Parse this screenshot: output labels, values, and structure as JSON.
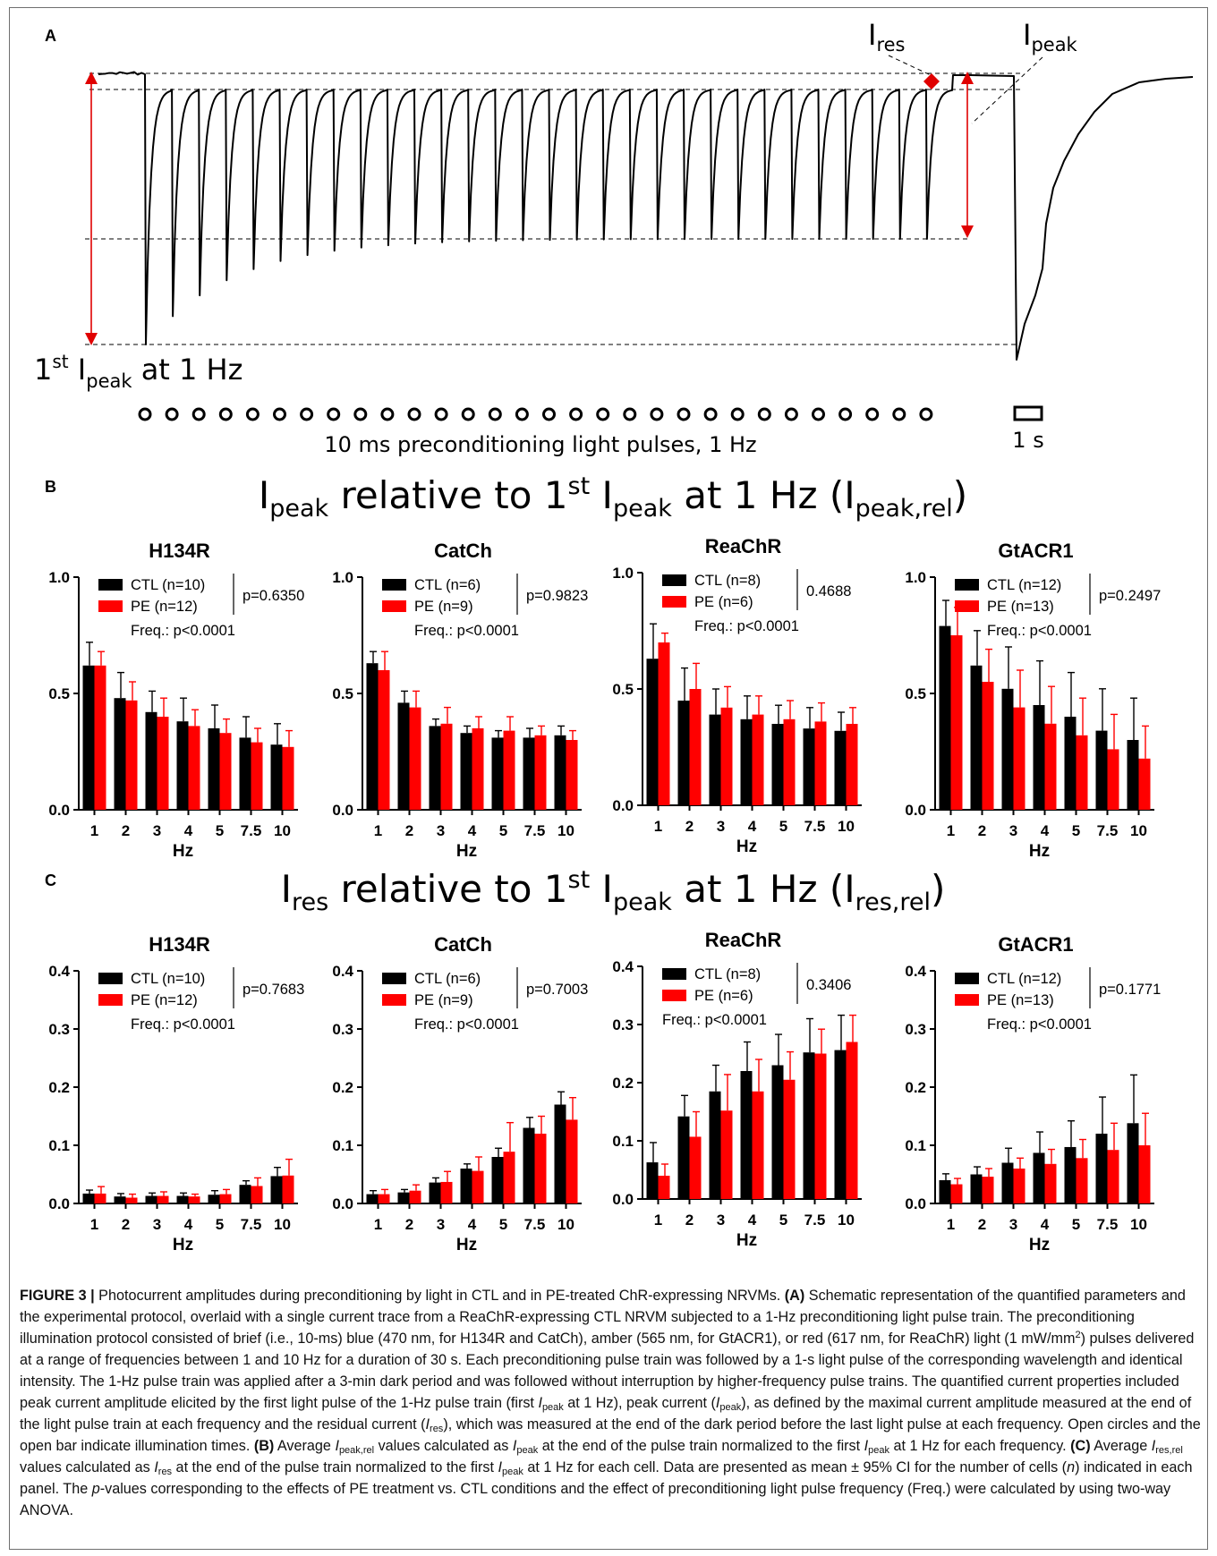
{
  "panelA": {
    "letter": "A",
    "ires_main": "I",
    "ires_sub": "res",
    "ipeak_main": "I",
    "ipeak_sub": "peak",
    "first_ipeak_1": "1",
    "first_ipeak_st": "st",
    "first_ipeak_i": " I",
    "first_ipeak_sub": "peak",
    "first_ipeak_rest": " at 1 Hz",
    "pulses_label": "10 ms preconditioning light pulses, 1 Hz",
    "scale_label": "1 s",
    "pulse_count": 30
  },
  "panelB": {
    "letter": "B",
    "title_parts": [
      "I",
      "peak",
      " relative to 1",
      "st",
      " I",
      "peak",
      " at 1 Hz (I",
      "peak,rel",
      ")"
    ]
  },
  "panelC": {
    "letter": "C",
    "title_parts": [
      "I",
      "res",
      " relative to 1",
      "st",
      " I",
      "peak",
      " at 1 Hz (I",
      "res,rel",
      ")"
    ]
  },
  "colors": {
    "ctl": "#000000",
    "pe": "#ff0000",
    "arrow": "#e00000"
  },
  "chart_data": [
    {
      "type": "bar",
      "panel": "B",
      "title": "H134R",
      "xlabel": "Hz",
      "ylabel": "",
      "categories": [
        "1",
        "2",
        "3",
        "4",
        "5",
        "7.5",
        "10"
      ],
      "ylim": [
        0,
        1.0
      ],
      "yticks": [
        "0.0",
        "0.5",
        "1.0"
      ],
      "ytick_values": [
        0,
        0.5,
        1.0
      ],
      "series": [
        {
          "name": "CTL (n=10)",
          "values": [
            0.62,
            0.48,
            0.42,
            0.38,
            0.35,
            0.31,
            0.28
          ],
          "err": [
            0.1,
            0.11,
            0.09,
            0.1,
            0.1,
            0.09,
            0.09
          ]
        },
        {
          "name": "PE (n=12)",
          "values": [
            0.62,
            0.47,
            0.4,
            0.36,
            0.33,
            0.29,
            0.27
          ],
          "err": [
            0.06,
            0.08,
            0.08,
            0.07,
            0.06,
            0.06,
            0.07
          ]
        }
      ],
      "pvalue": "p=0.6350",
      "freq": "Freq.: p<0.0001"
    },
    {
      "type": "bar",
      "panel": "B",
      "title": "CatCh",
      "xlabel": "Hz",
      "ylabel": "",
      "categories": [
        "1",
        "2",
        "3",
        "4",
        "5",
        "7.5",
        "10"
      ],
      "ylim": [
        0,
        1.0
      ],
      "yticks": [
        "0.0",
        "0.5",
        "1.0"
      ],
      "ytick_values": [
        0,
        0.5,
        1.0
      ],
      "series": [
        {
          "name": "CTL (n=6)",
          "values": [
            0.63,
            0.46,
            0.36,
            0.33,
            0.31,
            0.31,
            0.32
          ],
          "err": [
            0.05,
            0.05,
            0.03,
            0.03,
            0.03,
            0.04,
            0.04
          ]
        },
        {
          "name": "PE (n=9)",
          "values": [
            0.6,
            0.44,
            0.37,
            0.35,
            0.34,
            0.32,
            0.3
          ],
          "err": [
            0.08,
            0.07,
            0.07,
            0.05,
            0.06,
            0.04,
            0.04
          ]
        }
      ],
      "pvalue": "p=0.9823",
      "freq": "Freq.: p<0.0001"
    },
    {
      "type": "bar",
      "panel": "B",
      "title": "ReaChR",
      "xlabel": "Hz",
      "ylabel": "",
      "categories": [
        "1",
        "2",
        "3",
        "4",
        "5",
        "7.5",
        "10"
      ],
      "ylim": [
        0,
        1.0
      ],
      "yticks": [
        "0.0",
        "0.5",
        "1.0"
      ],
      "ytick_values": [
        0,
        0.5,
        1.0
      ],
      "series": [
        {
          "name": "CTL (n=8)",
          "values": [
            0.63,
            0.45,
            0.39,
            0.37,
            0.35,
            0.33,
            0.32
          ],
          "err": [
            0.15,
            0.14,
            0.11,
            0.1,
            0.08,
            0.09,
            0.08
          ]
        },
        {
          "name": "PE (n=6)",
          "values": [
            0.7,
            0.5,
            0.42,
            0.39,
            0.37,
            0.36,
            0.35
          ],
          "err": [
            0.04,
            0.11,
            0.09,
            0.08,
            0.08,
            0.08,
            0.07
          ]
        }
      ],
      "pvalue": "0.4688",
      "freq": "Freq.: p<0.0001"
    },
    {
      "type": "bar",
      "panel": "B",
      "title": "GtACR1",
      "xlabel": "Hz",
      "ylabel": "",
      "categories": [
        "1",
        "2",
        "3",
        "4",
        "5",
        "7.5",
        "10"
      ],
      "ylim": [
        0,
        1.0
      ],
      "yticks": [
        "0.0",
        "0.5",
        "1.0"
      ],
      "ytick_values": [
        0,
        0.5,
        1.0
      ],
      "series": [
        {
          "name": "CTL (n=12)",
          "values": [
            0.79,
            0.62,
            0.52,
            0.45,
            0.4,
            0.34,
            0.3
          ],
          "err": [
            0.11,
            0.15,
            0.18,
            0.19,
            0.19,
            0.18,
            0.18
          ]
        },
        {
          "name": "PE (n=13)",
          "values": [
            0.75,
            0.55,
            0.44,
            0.37,
            0.32,
            0.26,
            0.22
          ],
          "err": [
            0.12,
            0.14,
            0.16,
            0.16,
            0.16,
            0.15,
            0.14
          ]
        }
      ],
      "pvalue": "p=0.2497",
      "freq": "Freq.: p<0.0001"
    },
    {
      "type": "bar",
      "panel": "C",
      "title": "H134R",
      "xlabel": "Hz",
      "ylabel": "",
      "categories": [
        "1",
        "2",
        "3",
        "4",
        "5",
        "7.5",
        "10"
      ],
      "ylim": [
        0,
        0.4
      ],
      "yticks": [
        "0.0",
        "0.1",
        "0.2",
        "0.3",
        "0.4"
      ],
      "ytick_values": [
        0,
        0.1,
        0.2,
        0.3,
        0.4
      ],
      "series": [
        {
          "name": "CTL (n=10)",
          "values": [
            0.017,
            0.012,
            0.013,
            0.013,
            0.015,
            0.032,
            0.047
          ],
          "err": [
            0.006,
            0.005,
            0.005,
            0.005,
            0.007,
            0.007,
            0.015
          ]
        },
        {
          "name": "PE (n=12)",
          "values": [
            0.017,
            0.01,
            0.013,
            0.012,
            0.016,
            0.03,
            0.048
          ],
          "err": [
            0.012,
            0.006,
            0.007,
            0.004,
            0.008,
            0.014,
            0.028
          ]
        }
      ],
      "pvalue": "p=0.7683",
      "freq": "Freq.: p<0.0001"
    },
    {
      "type": "bar",
      "panel": "C",
      "title": "CatCh",
      "xlabel": "Hz",
      "ylabel": "",
      "categories": [
        "1",
        "2",
        "3",
        "4",
        "5",
        "7.5",
        "10"
      ],
      "ylim": [
        0,
        0.4
      ],
      "yticks": [
        "0.0",
        "0.1",
        "0.2",
        "0.3",
        "0.4"
      ],
      "ytick_values": [
        0,
        0.1,
        0.2,
        0.3,
        0.4
      ],
      "series": [
        {
          "name": "CTL (n=6)",
          "values": [
            0.016,
            0.019,
            0.036,
            0.06,
            0.08,
            0.13,
            0.17
          ],
          "err": [
            0.006,
            0.005,
            0.008,
            0.008,
            0.015,
            0.018,
            0.022
          ]
        },
        {
          "name": "PE (n=9)",
          "values": [
            0.016,
            0.022,
            0.037,
            0.056,
            0.089,
            0.12,
            0.144
          ],
          "err": [
            0.008,
            0.01,
            0.018,
            0.024,
            0.05,
            0.03,
            0.038
          ]
        }
      ],
      "pvalue": "p=0.7003",
      "freq": "Freq.: p<0.0001"
    },
    {
      "type": "bar",
      "panel": "C",
      "title": "ReaChR",
      "xlabel": "Hz",
      "ylabel": "",
      "categories": [
        "1",
        "2",
        "3",
        "4",
        "5",
        "7.5",
        "10"
      ],
      "ylim": [
        0,
        0.4
      ],
      "yticks": [
        "0.0",
        "0.1",
        "0.2",
        "0.3",
        "0.4"
      ],
      "ytick_values": [
        0,
        0.1,
        0.2,
        0.3,
        0.4
      ],
      "series": [
        {
          "name": "CTL (n=8)",
          "values": [
            0.063,
            0.142,
            0.185,
            0.22,
            0.23,
            0.252,
            0.256
          ],
          "err": [
            0.034,
            0.036,
            0.045,
            0.05,
            0.053,
            0.058,
            0.06
          ]
        },
        {
          "name": "PE (n=6)",
          "values": [
            0.04,
            0.107,
            0.152,
            0.185,
            0.205,
            0.25,
            0.27
          ],
          "err": [
            0.02,
            0.043,
            0.062,
            0.055,
            0.048,
            0.042,
            0.046
          ]
        }
      ],
      "pvalue": "0.3406",
      "freq": "Freq.: p<0.0001"
    },
    {
      "type": "bar",
      "panel": "C",
      "title": "GtACR1",
      "xlabel": "Hz",
      "ylabel": "",
      "categories": [
        "1",
        "2",
        "3",
        "4",
        "5",
        "7.5",
        "10"
      ],
      "ylim": [
        0,
        0.4
      ],
      "yticks": [
        "0.0",
        "0.1",
        "0.2",
        "0.3",
        "0.4"
      ],
      "ytick_values": [
        0,
        0.1,
        0.2,
        0.3,
        0.4
      ],
      "series": [
        {
          "name": "CTL (n=12)",
          "values": [
            0.04,
            0.05,
            0.07,
            0.087,
            0.097,
            0.12,
            0.138
          ],
          "err": [
            0.011,
            0.013,
            0.025,
            0.036,
            0.045,
            0.063,
            0.083
          ]
        },
        {
          "name": "PE (n=13)",
          "values": [
            0.033,
            0.046,
            0.06,
            0.068,
            0.078,
            0.092,
            0.1
          ],
          "err": [
            0.01,
            0.014,
            0.018,
            0.025,
            0.032,
            0.046,
            0.055
          ]
        }
      ],
      "pvalue": "p=0.1771",
      "freq": "Freq.: p<0.0001"
    }
  ],
  "caption": {
    "fig_label": "FIGURE 3 |",
    "t1": " Photocurrent amplitudes during preconditioning by light in CTL and in PE-treated ChR-expressing NRVMs. ",
    "lblA": "(A)",
    "t2": " Schematic representation of the quantified parameters and the experimental protocol, overlaid with a single current trace from a ReaChR-expressing CTL NRVM subjected to a 1-Hz preconditioning light pulse train. The preconditioning illumination protocol consisted of brief (i.e., 10-ms) blue (470 nm, for H134R and CatCh), amber (565 nm, for GtACR1), or red (617 nm, for ReaChR) light (1 mW/mm",
    "sup2": "2",
    "t3": ") pulses delivered at a range of frequencies between 1 and 10 Hz for a duration of 30 s. Each preconditioning pulse train was followed by a 1-s light pulse of the corresponding wavelength and identical intensity. The 1-Hz pulse train was applied after a 3-min dark period and was followed without interruption by higher-frequency pulse trains. The quantified current properties included peak current amplitude elicited by the first light pulse of the 1-Hz pulse train (first ",
    "i": "I",
    "peak": "peak",
    "res": "res",
    "t4": " at 1 Hz), peak current (",
    "t5": "), as defined by the maximal current amplitude measured at the end of the light pulse train at each frequency and the residual current (",
    "t6": "), which was measured at the end of the dark period before the last light pulse at each frequency. Open circles and the open bar indicate illumination times. ",
    "lblB": "(B)",
    "t7": " Average ",
    "peakrel": "peak,rel",
    "t8": " values calculated as ",
    "t9": " at the end of the pulse train normalized to the first ",
    "t10": " at 1 Hz for each frequency. ",
    "lblC": "(C)",
    "resrel": "res,rel",
    "t11": " at 1 Hz for each cell. Data are presented as mean ± 95% CI for the number of cells (",
    "n": "n",
    "t12": ") indicated in each panel. The ",
    "p": "p",
    "t13": "-values corresponding to the effects of PE treatment vs. CTL conditions and the effect of preconditioning light pulse frequency (Freq.) were calculated by using two-way ANOVA."
  }
}
